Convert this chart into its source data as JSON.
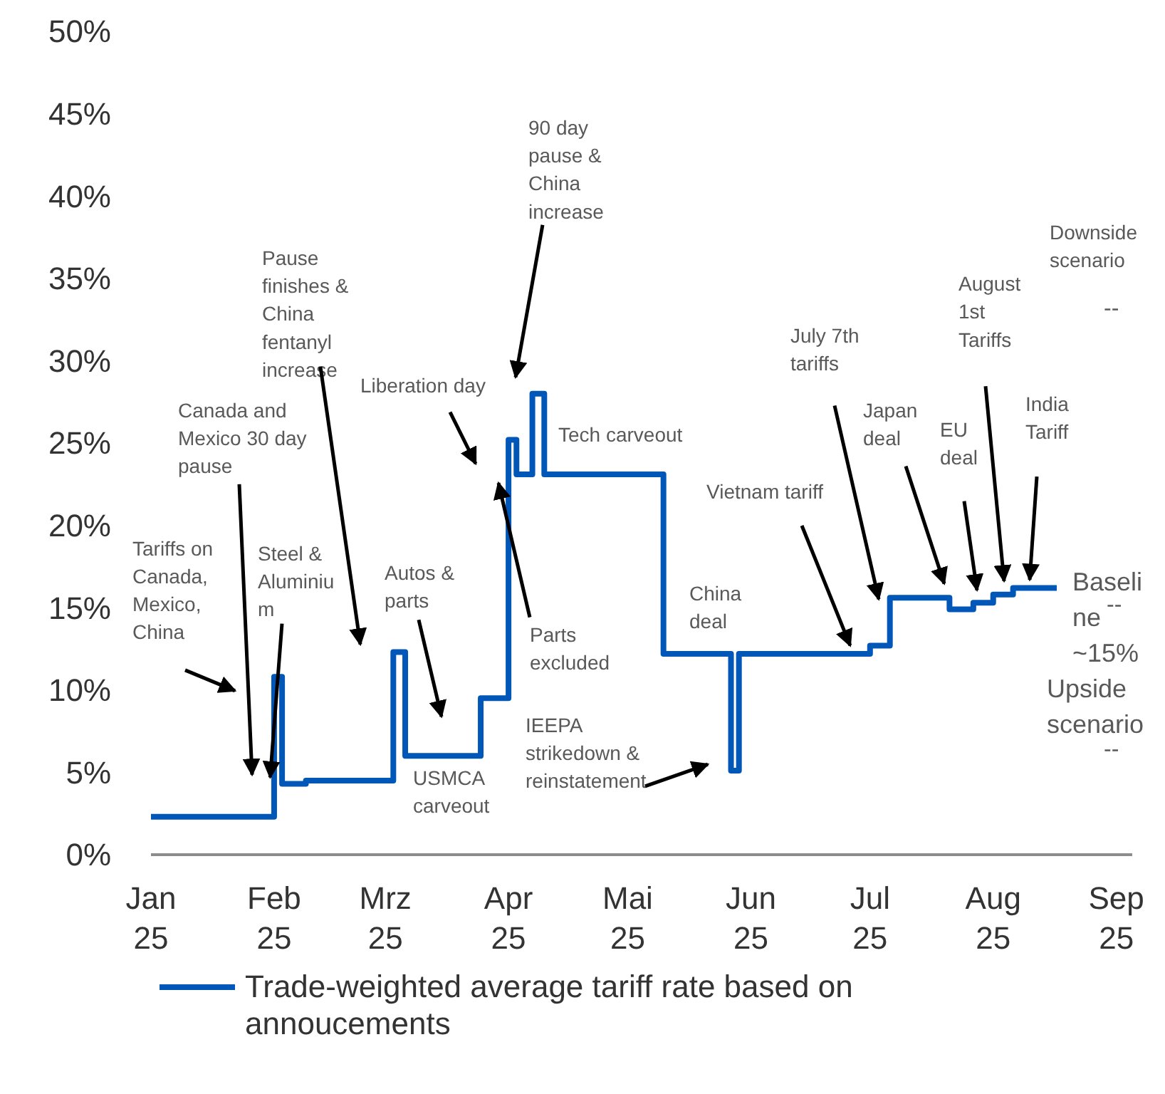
{
  "chart_data": {
    "type": "step",
    "xlim": [
      "2025-01-01",
      "2025-09-05"
    ],
    "ylim": [
      0,
      50
    ],
    "xticks": [
      {
        "value": "2025-01-01",
        "label": "Jan 25"
      },
      {
        "value": "2025-02-01",
        "label": "Feb 25"
      },
      {
        "value": "2025-03-01",
        "label": "Mrz 25"
      },
      {
        "value": "2025-04-01",
        "label": "Apr 25"
      },
      {
        "value": "2025-05-01",
        "label": "Mai 25"
      },
      {
        "value": "2025-06-01",
        "label": "Jun 25"
      },
      {
        "value": "2025-07-01",
        "label": "Jul 25"
      },
      {
        "value": "2025-08-01",
        "label": "Aug 25"
      },
      {
        "value": "2025-09-01",
        "label": "Sep 25"
      }
    ],
    "yticks": [
      {
        "value": 0,
        "label": "0%"
      },
      {
        "value": 5,
        "label": "5%"
      },
      {
        "value": 10,
        "label": "10%"
      },
      {
        "value": 15,
        "label": "15%"
      },
      {
        "value": 20,
        "label": "20%"
      },
      {
        "value": 25,
        "label": "25%"
      },
      {
        "value": 30,
        "label": "30%"
      },
      {
        "value": 35,
        "label": "35%"
      },
      {
        "value": 40,
        "label": "40%"
      },
      {
        "value": 45,
        "label": "45%"
      },
      {
        "value": 50,
        "label": "50%"
      }
    ],
    "grid": false,
    "legend": "bottom",
    "line_style": "solid",
    "marker": "none",
    "x": [
      "2025-01-01",
      "2025-02-01",
      "2025-02-03",
      "2025-02-09",
      "2025-03-03",
      "2025-03-06",
      "2025-03-25",
      "2025-04-01",
      "2025-04-03",
      "2025-04-07",
      "2025-04-10",
      "2025-05-10",
      "2025-05-27",
      "2025-05-29",
      "2025-07-01",
      "2025-07-06",
      "2025-07-21",
      "2025-07-27",
      "2025-08-01",
      "2025-08-06",
      "2025-08-17"
    ],
    "series": [
      {
        "name": "Trade-weighted average tariff rate based on annoucements",
        "color": "#0057b8",
        "values": [
          2.3,
          10.8,
          4.3,
          4.5,
          12.3,
          6.0,
          9.5,
          25.2,
          23.1,
          28.0,
          23.1,
          12.2,
          5.1,
          12.2,
          12.7,
          15.6,
          14.9,
          15.3,
          15.8,
          16.2,
          16.2
        ]
      }
    ],
    "annotations": [
      "Tariffs on Canada, Mexico, China",
      "Canada and Mexico 30 day pause",
      {
        "text": "Steel & Aluminium",
        "x": "2025-01-31",
        "y": 4.7
      },
      "Pause finishes & China fentanyl increase",
      "Liberation day",
      "Autos & parts",
      "USMCA carveout",
      "90 day pause & China increase",
      "Tech carveout",
      "Parts excluded",
      "IEEPA strikedown & reinstatement",
      "China deal",
      {
        "text": "Vietnam tariff",
        "x": "2025-06-26",
        "y": 12.7
      },
      "July 7th tariffs",
      "Japan deal",
      "EU deal",
      "August 1st Tariffs",
      "India Tariff",
      "Downside scenario",
      "Baseline ~15%",
      "Upside scenario",
      "--",
      "--",
      "--"
    ]
  }
}
